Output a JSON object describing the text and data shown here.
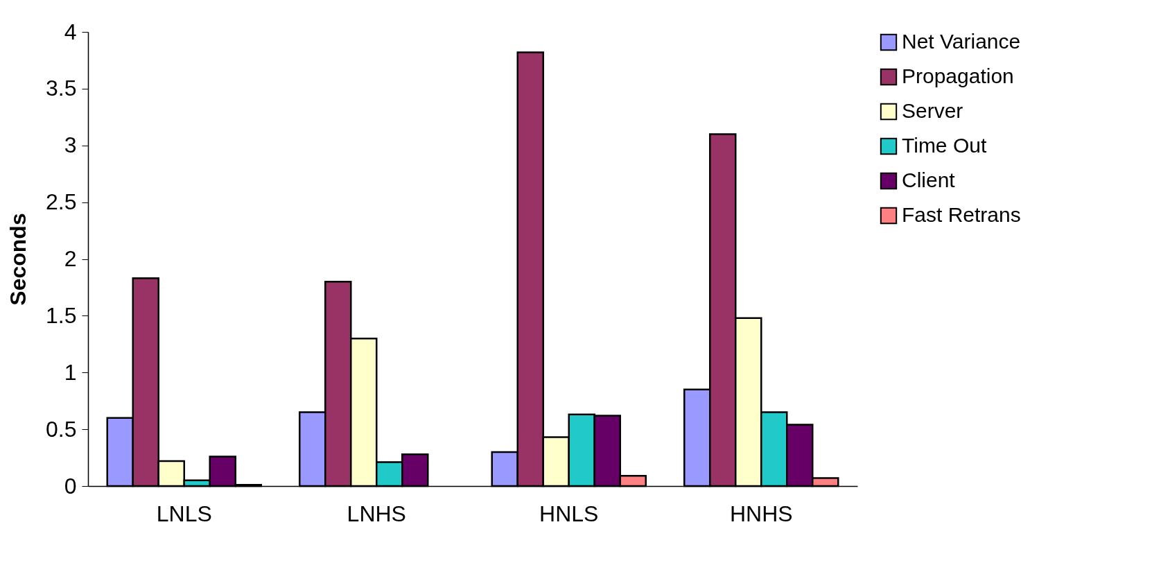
{
  "chart_data": {
    "type": "bar",
    "ylabel": "Seconds",
    "categories": [
      "LNLS",
      "LNHS",
      "HNLS",
      "HNHS"
    ],
    "series": [
      {
        "name": "Net Variance",
        "color": "#9999ff",
        "values": [
          0.6,
          0.65,
          0.3,
          0.85
        ]
      },
      {
        "name": "Propagation",
        "color": "#993366",
        "values": [
          1.83,
          1.8,
          3.82,
          3.1
        ]
      },
      {
        "name": "Server",
        "color": "#ffffcc",
        "values": [
          0.22,
          1.3,
          0.43,
          1.48
        ]
      },
      {
        "name": "Time Out",
        "color": "#22c9c9",
        "values": [
          0.05,
          0.21,
          0.63,
          0.65
        ]
      },
      {
        "name": "Client",
        "color": "#660066",
        "values": [
          0.26,
          0.28,
          0.62,
          0.54
        ]
      },
      {
        "name": "Fast Retrans",
        "color": "#ff8080",
        "values": [
          0.01,
          null,
          0.09,
          0.07
        ]
      }
    ],
    "ylim": [
      0,
      4
    ],
    "yticks": [
      0,
      0.5,
      1,
      1.5,
      2,
      2.5,
      3,
      3.5,
      4
    ],
    "grid": false,
    "legend": "right"
  }
}
